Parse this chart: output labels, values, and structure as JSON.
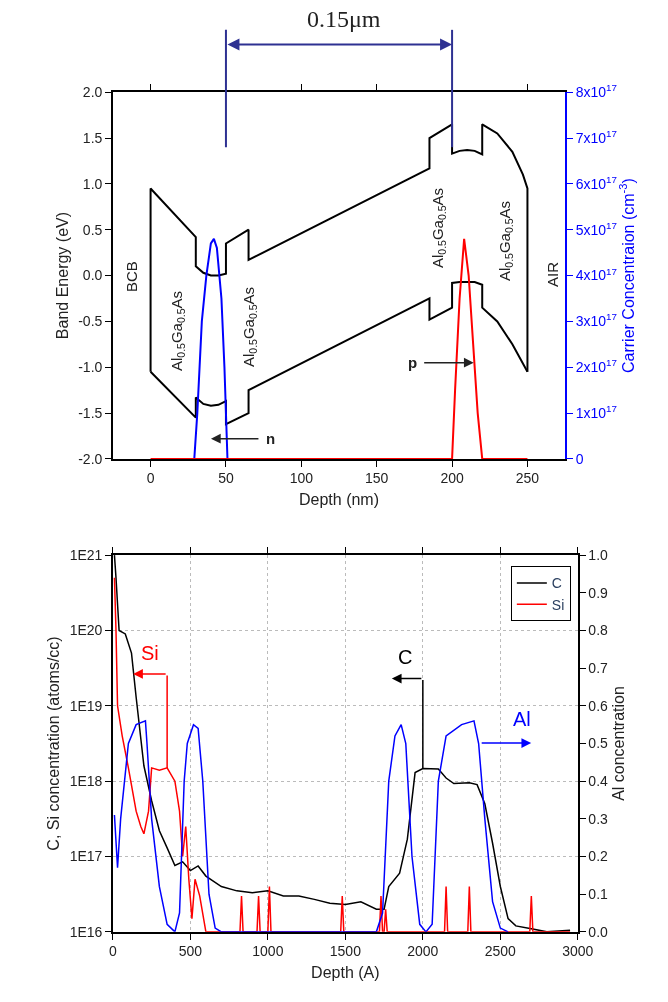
{
  "chart_data": [
    {
      "type": "line",
      "xlabel": "Depth (nm)",
      "ylabel": "Band Energy (eV)",
      "y2label": "Carrier Concentraion (cm$^{-3}$)",
      "xlim": [
        -25,
        275
      ],
      "xticks": [
        0,
        50,
        100,
        150,
        200,
        250
      ],
      "ylim": [
        -2,
        2
      ],
      "yticks": [
        {
          "value": -2,
          "label": "-2.0"
        },
        {
          "value": -1.5,
          "label": "-1.5"
        },
        {
          "value": -1,
          "label": "-1.0"
        },
        {
          "value": -0.5,
          "label": "-0.5"
        },
        {
          "value": 0,
          "label": "0.0"
        },
        {
          "value": 0.5,
          "label": "0.5"
        },
        {
          "value": 1,
          "label": "1.0"
        },
        {
          "value": 1.5,
          "label": "1.5"
        },
        {
          "value": 2,
          "label": "2.0"
        }
      ],
      "y2lim": [
        0,
        8e+17
      ],
      "y2ticks": [
        0,
        {
          "value": 1e+17,
          "label": "1x10$^{17}$"
        },
        {
          "value": 2e+17,
          "label": "2x10$^{17}$"
        },
        {
          "value": 3e+17,
          "label": "3x10$^{17}$"
        },
        {
          "value": 4e+17,
          "label": "4x10$^{17}$"
        },
        {
          "value": 5e+17,
          "label": "5x10$^{17}$"
        },
        {
          "value": 6e+17,
          "label": "6x10$^{17}$"
        },
        {
          "value": 7e+17,
          "label": "7x10$^{17}$"
        },
        {
          "value": 8e+17,
          "label": "8x10$^{17}$"
        }
      ],
      "grid": false,
      "series": [
        {
          "color": "#000000",
          "x": [
            0,
            0,
            30,
            30,
            35,
            40,
            45,
            50,
            50,
            65,
            65,
            185,
            185,
            200,
            200,
            205,
            210,
            215,
            220,
            220,
            230,
            240,
            247,
            250,
            250
          ],
          "values": [
            -1.05,
            0.95,
            0.42,
            0.1,
            0.03,
            0.0,
            0.0,
            0.02,
            0.35,
            0.5,
            0.17,
            1.17,
            1.5,
            1.65,
            1.33,
            1.36,
            1.37,
            1.36,
            1.32,
            1.65,
            1.55,
            1.35,
            1.1,
            0.95,
            -1.05
          ]
        },
        {
          "color": "#000000",
          "x": [
            0,
            30,
            30,
            35,
            40,
            45,
            50,
            50,
            65,
            65,
            185,
            185,
            200,
            200,
            205,
            210,
            215,
            220,
            220,
            230,
            240,
            250
          ],
          "values": [
            -1.05,
            -1.55,
            -1.33,
            -1.4,
            -1.42,
            -1.41,
            -1.37,
            -1.62,
            -1.5,
            -1.25,
            -0.25,
            -0.48,
            -0.35,
            -0.08,
            -0.07,
            -0.07,
            -0.07,
            -0.1,
            -0.35,
            -0.5,
            -0.75,
            -1.05
          ]
        },
        {
          "color": "#0000ff",
          "axis": "y2",
          "x": [
            29,
            31,
            34,
            37,
            40,
            42,
            44,
            47,
            49,
            51
          ],
          "values": [
            0,
            1e+17,
            3e+17,
            4e+17,
            4.7e+17,
            4.8e+17,
            4.6e+17,
            3.5e+17,
            2e+17,
            0
          ]
        },
        {
          "color": "#ff0000",
          "axis": "y2",
          "x": [
            0,
            200,
            202,
            205,
            208,
            211,
            214,
            217,
            220,
            250
          ],
          "values": [
            0,
            0,
            1.5e+17,
            3.5e+17,
            4.8e+17,
            4e+17,
            2.5e+17,
            1e+17,
            0,
            0
          ]
        }
      ],
      "ref_lines": [
        {
          "axis": "x",
          "value": 50,
          "color": "#2e3192"
        },
        {
          "axis": "x",
          "value": 200,
          "color": "#2e3192"
        }
      ],
      "annotations": [
        "0.15μm",
        "BCB",
        "Al$_{0.5}$Ga$_{0.5}$As",
        "Al$_{0.5}$Ga$_{0.5}$As",
        "Al$_{0.5}$Ga$_{0.5}$As",
        "Al$_{0.5}$Ga$_{0.5}$As",
        "AIR",
        {
          "text": "n",
          "x": 50,
          "y": -1.78
        },
        {
          "text": "p",
          "x": 215,
          "y": -0.95
        }
      ]
    },
    {
      "type": "line",
      "xlabel": "Depth (A)",
      "ylabel": "C, Si concentration (atoms/cc)",
      "y2label": "Al concentration",
      "xlim": [
        0,
        3000
      ],
      "xticks": [
        0,
        500,
        1000,
        1500,
        2000,
        2500,
        3000
      ],
      "log": "y",
      "ylim": [
        1e+16,
        1e+21
      ],
      "yticks": [
        {
          "value": 1e+16,
          "label": "1E16"
        },
        {
          "value": 1e+17,
          "label": "1E17"
        },
        {
          "value": 1e+18,
          "label": "1E18"
        },
        {
          "value": 1e+19,
          "label": "1E19"
        },
        {
          "value": 1e+20,
          "label": "1E20"
        },
        {
          "value": 1e+21,
          "label": "1E21"
        }
      ],
      "y2lim": [
        0,
        1
      ],
      "y2ticks": [
        {
          "value": 0,
          "label": "0.0"
        },
        {
          "value": 0.1,
          "label": "0.1"
        },
        {
          "value": 0.2,
          "label": "0.2"
        },
        {
          "value": 0.3,
          "label": "0.3"
        },
        {
          "value": 0.4,
          "label": "0.4"
        },
        {
          "value": 0.5,
          "label": "0.5"
        },
        {
          "value": 0.6,
          "label": "0.6"
        },
        {
          "value": 0.7,
          "label": "0.7"
        },
        {
          "value": 0.8,
          "label": "0.8"
        },
        {
          "value": 0.9,
          "label": "0.9"
        },
        {
          "value": 1,
          "label": "1.0"
        }
      ],
      "grid": true,
      "legend": "top right",
      "series": [
        {
          "name": "C",
          "color": "#000000",
          "x": [
            10,
            20,
            40,
            80,
            120,
            150,
            200,
            250,
            300,
            350,
            400,
            450,
            500,
            550,
            600,
            700,
            800,
            900,
            1000,
            1100,
            1200,
            1300,
            1400,
            1500,
            1600,
            1700,
            1750,
            1780,
            1850,
            1900,
            1950,
            2000,
            2100,
            2150,
            2200,
            2300,
            2350,
            2400,
            2450,
            2500,
            2550,
            2600,
            2700,
            2800,
            2950
          ],
          "values": [
            1e+21,
            5e+20,
            1e+20,
            9e+19,
            5e+19,
            1.3e+19,
            1.6e+18,
            5.5e+17,
            2.2e+17,
            1.3e+17,
            7.6e+16,
            8.5e+16,
            6.5e+16,
            7.5e+16,
            5.5e+16,
            4e+16,
            3.5e+16,
            3.3e+16,
            3.5e+16,
            3e+16,
            3e+16,
            2.7e+16,
            2.4e+16,
            2.3e+16,
            2.5e+16,
            2e+16,
            2e+16,
            4e+16,
            6e+16,
            1.7e+17,
            1.3e+18,
            1.47e+18,
            1.45e+18,
            1.1e+18,
            9.3e+17,
            9.5e+17,
            9e+17,
            5e+17,
            1.5e+17,
            4e+16,
            1.5e+16,
            1.2e+16,
            1.1e+16,
            1e+16,
            1.05e+16
          ]
        },
        {
          "name": "Si",
          "color": "#ff0000",
          "x": [
            10,
            20,
            30,
            60,
            100,
            150,
            180,
            200,
            230,
            250,
            300,
            350,
            400,
            430,
            450,
            470,
            490,
            510,
            530,
            560,
            600,
            820,
            830,
            840,
            930,
            940,
            950,
            1000,
            1010,
            1020,
            1470,
            1480,
            1490,
            1720,
            1730,
            1740,
            1750,
            1760,
            1770,
            2140,
            2150,
            2160,
            2290,
            2300,
            2310,
            2690,
            2700,
            2710,
            2950
          ],
          "values": [
            5e+20,
            1e+20,
            1e+19,
            4e+18,
            1.5e+18,
            4e+17,
            2.5e+17,
            2e+17,
            4e+17,
            1.5e+18,
            1.4e+18,
            1.5e+18,
            1e+18,
            4e+17,
            1e+17,
            2.5e+17,
            5e+16,
            1.5e+16,
            5e+16,
            3e+16,
            1e+16,
            1e+16,
            3e+16,
            1e+16,
            1e+16,
            3e+16,
            1e+16,
            1e+16,
            4e+16,
            1e+16,
            1e+16,
            3e+16,
            1e+16,
            1e+16,
            3e+16,
            1e+16,
            1e+16,
            2e+16,
            1e+16,
            1e+16,
            4e+16,
            1e+16,
            1e+16,
            4e+16,
            1e+16,
            1e+16,
            3e+16,
            1e+16,
            1e+16
          ]
        },
        {
          "color": "#0000ff",
          "axis": "y2",
          "x": [
            10,
            30,
            50,
            100,
            150,
            210,
            220,
            250,
            300,
            350,
            400,
            430,
            460,
            480,
            520,
            550,
            580,
            620,
            660,
            700,
            1700,
            1740,
            1780,
            1820,
            1860,
            1890,
            1930,
            1980,
            2020,
            2060,
            2100,
            2150,
            2250,
            2330,
            2360,
            2400,
            2450,
            2500,
            2550
          ],
          "values": [
            0.31,
            0.17,
            0.3,
            0.5,
            0.55,
            0.56,
            0.5,
            0.3,
            0.12,
            0.02,
            0.0,
            0.05,
            0.4,
            0.5,
            0.55,
            0.54,
            0.4,
            0.1,
            0.01,
            0.0,
            0.0,
            0.05,
            0.4,
            0.52,
            0.55,
            0.5,
            0.2,
            0.02,
            0.0,
            0.02,
            0.4,
            0.52,
            0.55,
            0.56,
            0.5,
            0.3,
            0.08,
            0.01,
            0.0
          ]
        }
      ],
      "annotations": [
        {
          "text": "Si",
          "x": 350,
          "y": 1.5e+18
        },
        {
          "text": "C",
          "x": 2000,
          "y": 1.47e+18
        },
        {
          "text": "Al",
          "x": 2370,
          "y": 3.2e+18
        }
      ]
    }
  ]
}
